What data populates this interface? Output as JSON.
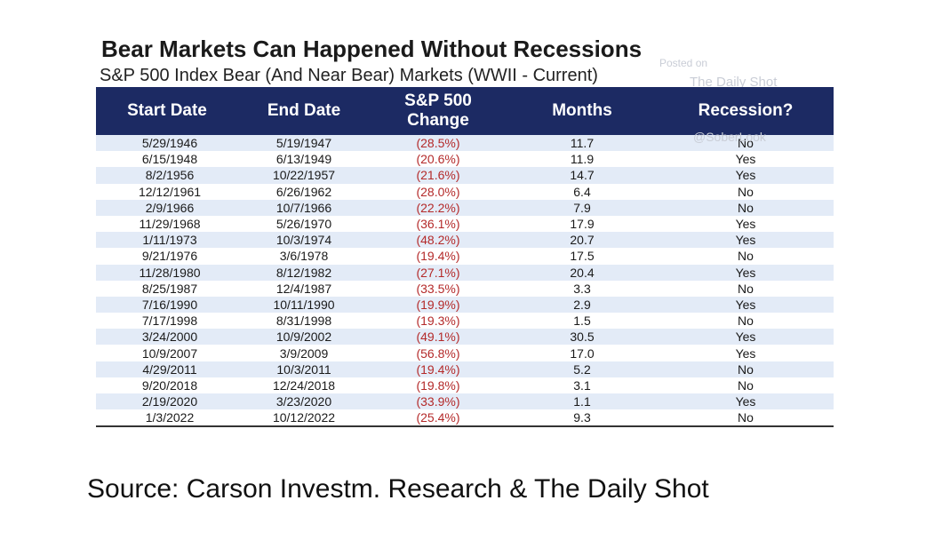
{
  "header": {
    "title": "Bear Markets Can Happened Without Recessions",
    "subtitle": "S&P 500 Index Bear (And Near Bear) Markets (WWII - Current)"
  },
  "watermark": {
    "line1": "Posted on",
    "line2": "The Daily Shot",
    "line3": "@SoberLook"
  },
  "chart_data": {
    "type": "table",
    "columns": [
      "Start Date",
      "End Date",
      "S&P 500 Change",
      "Months",
      "Recession?"
    ],
    "rows": [
      [
        "5/29/1946",
        "5/19/1947",
        "(28.5%)",
        "11.7",
        "No"
      ],
      [
        "6/15/1948",
        "6/13/1949",
        "(20.6%)",
        "11.9",
        "Yes"
      ],
      [
        "8/2/1956",
        "10/22/1957",
        "(21.6%)",
        "14.7",
        "Yes"
      ],
      [
        "12/12/1961",
        "6/26/1962",
        "(28.0%)",
        "6.4",
        "No"
      ],
      [
        "2/9/1966",
        "10/7/1966",
        "(22.2%)",
        "7.9",
        "No"
      ],
      [
        "11/29/1968",
        "5/26/1970",
        "(36.1%)",
        "17.9",
        "Yes"
      ],
      [
        "1/11/1973",
        "10/3/1974",
        "(48.2%)",
        "20.7",
        "Yes"
      ],
      [
        "9/21/1976",
        "3/6/1978",
        "(19.4%)",
        "17.5",
        "No"
      ],
      [
        "11/28/1980",
        "8/12/1982",
        "(27.1%)",
        "20.4",
        "Yes"
      ],
      [
        "8/25/1987",
        "12/4/1987",
        "(33.5%)",
        "3.3",
        "No"
      ],
      [
        "7/16/1990",
        "10/11/1990",
        "(19.9%)",
        "2.9",
        "Yes"
      ],
      [
        "7/17/1998",
        "8/31/1998",
        "(19.3%)",
        "1.5",
        "No"
      ],
      [
        "3/24/2000",
        "10/9/2002",
        "(49.1%)",
        "30.5",
        "Yes"
      ],
      [
        "10/9/2007",
        "3/9/2009",
        "(56.8%)",
        "17.0",
        "Yes"
      ],
      [
        "4/29/2011",
        "10/3/2011",
        "(19.4%)",
        "5.2",
        "No"
      ],
      [
        "9/20/2018",
        "12/24/2018",
        "(19.8%)",
        "3.1",
        "No"
      ],
      [
        "2/19/2020",
        "3/23/2020",
        "(33.9%)",
        "1.1",
        "Yes"
      ],
      [
        "1/3/2022",
        "10/12/2022",
        "(25.4%)",
        "9.3",
        "No"
      ]
    ]
  },
  "source": "Source: Carson Investm. Research & The Daily Shot",
  "colors": {
    "header_bg": "#1c2a63",
    "stripe": "#e3ebf7",
    "negative": "#b42a2a"
  }
}
